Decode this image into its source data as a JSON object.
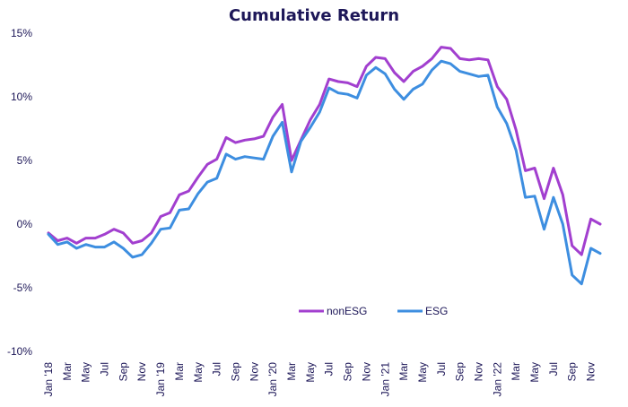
{
  "chart_data": {
    "type": "line",
    "title": "Cumulative Return",
    "xlabel": "",
    "ylabel": "",
    "ylim": [
      -10,
      15
    ],
    "yticks": [
      "15%",
      "10%",
      "5%",
      "0%",
      "-5%",
      "-10%"
    ],
    "ytick_values": [
      15,
      10,
      5,
      0,
      -5,
      -10
    ],
    "categories": [
      "Jan '18",
      "Feb",
      "Mar",
      "Apr",
      "May",
      "Jun",
      "Jul",
      "Aug",
      "Sep",
      "Oct",
      "Nov",
      "Dec",
      "Jan '19",
      "Feb",
      "Mar",
      "Apr",
      "May",
      "Jun",
      "Jul",
      "Aug",
      "Sep",
      "Oct",
      "Nov",
      "Dec",
      "Jan '20",
      "Feb",
      "Mar",
      "Apr",
      "May",
      "Jun",
      "Jul",
      "Aug",
      "Sep",
      "Oct",
      "Nov",
      "Dec",
      "Jan '21",
      "Feb",
      "Mar",
      "Apr",
      "May",
      "Jun",
      "Jul",
      "Aug",
      "Sep",
      "Oct",
      "Nov",
      "Dec",
      "Jan '22",
      "Feb",
      "Mar",
      "Apr",
      "May",
      "Jun",
      "Jul",
      "Aug",
      "Sep",
      "Oct",
      "Nov",
      "Dec"
    ],
    "x_tick_labels": [
      "Jan '18",
      "Mar",
      "May",
      "Jul",
      "Sep",
      "Nov",
      "Jan '19",
      "Mar",
      "May",
      "Jul",
      "Sep",
      "Nov",
      "Jan '20",
      "Mar",
      "May",
      "Jul",
      "Sep",
      "Nov",
      "Jan '21",
      "Mar",
      "May",
      "Jul",
      "Sep",
      "Nov",
      "Jan '22",
      "Mar",
      "May",
      "Jul",
      "Sep",
      "Nov"
    ],
    "series": [
      {
        "name": "nonESG",
        "color": "#a23fcf",
        "values": [
          -0.7,
          -1.3,
          -1.1,
          -1.5,
          -1.1,
          -1.1,
          -0.8,
          -0.4,
          -0.7,
          -1.5,
          -1.3,
          -0.7,
          0.6,
          0.9,
          2.3,
          2.6,
          3.7,
          4.7,
          5.1,
          6.8,
          6.4,
          6.6,
          6.7,
          6.9,
          8.4,
          9.4,
          5.0,
          6.6,
          8.2,
          9.4,
          11.4,
          11.2,
          11.1,
          10.8,
          12.4,
          13.1,
          13.0,
          11.9,
          11.2,
          12.0,
          12.4,
          13.0,
          13.9,
          13.8,
          13.0,
          12.9,
          13.0,
          12.9,
          10.8,
          9.8,
          7.4,
          4.2,
          4.4,
          2.0,
          4.4,
          2.3,
          -1.7,
          -2.4,
          0.4,
          0.0
        ],
        "legend_symbol": "line"
      },
      {
        "name": "ESG",
        "color": "#3d8ee0",
        "values": [
          -0.8,
          -1.6,
          -1.4,
          -1.9,
          -1.6,
          -1.8,
          -1.8,
          -1.4,
          -1.9,
          -2.6,
          -2.4,
          -1.5,
          -0.4,
          -0.3,
          1.1,
          1.2,
          2.4,
          3.3,
          3.6,
          5.5,
          5.1,
          5.3,
          5.2,
          5.1,
          6.9,
          8.0,
          4.1,
          6.5,
          7.6,
          8.8,
          10.7,
          10.3,
          10.2,
          9.9,
          11.7,
          12.3,
          11.8,
          10.6,
          9.8,
          10.6,
          11.0,
          12.1,
          12.8,
          12.6,
          12.0,
          11.8,
          11.6,
          11.7,
          9.2,
          7.9,
          5.8,
          2.1,
          2.2,
          -0.4,
          2.1,
          0.0,
          -4.0,
          -4.7,
          -1.9,
          -2.3
        ],
        "legend_symbol": "line"
      }
    ],
    "legend_position": "inside center-right",
    "grid": false
  }
}
